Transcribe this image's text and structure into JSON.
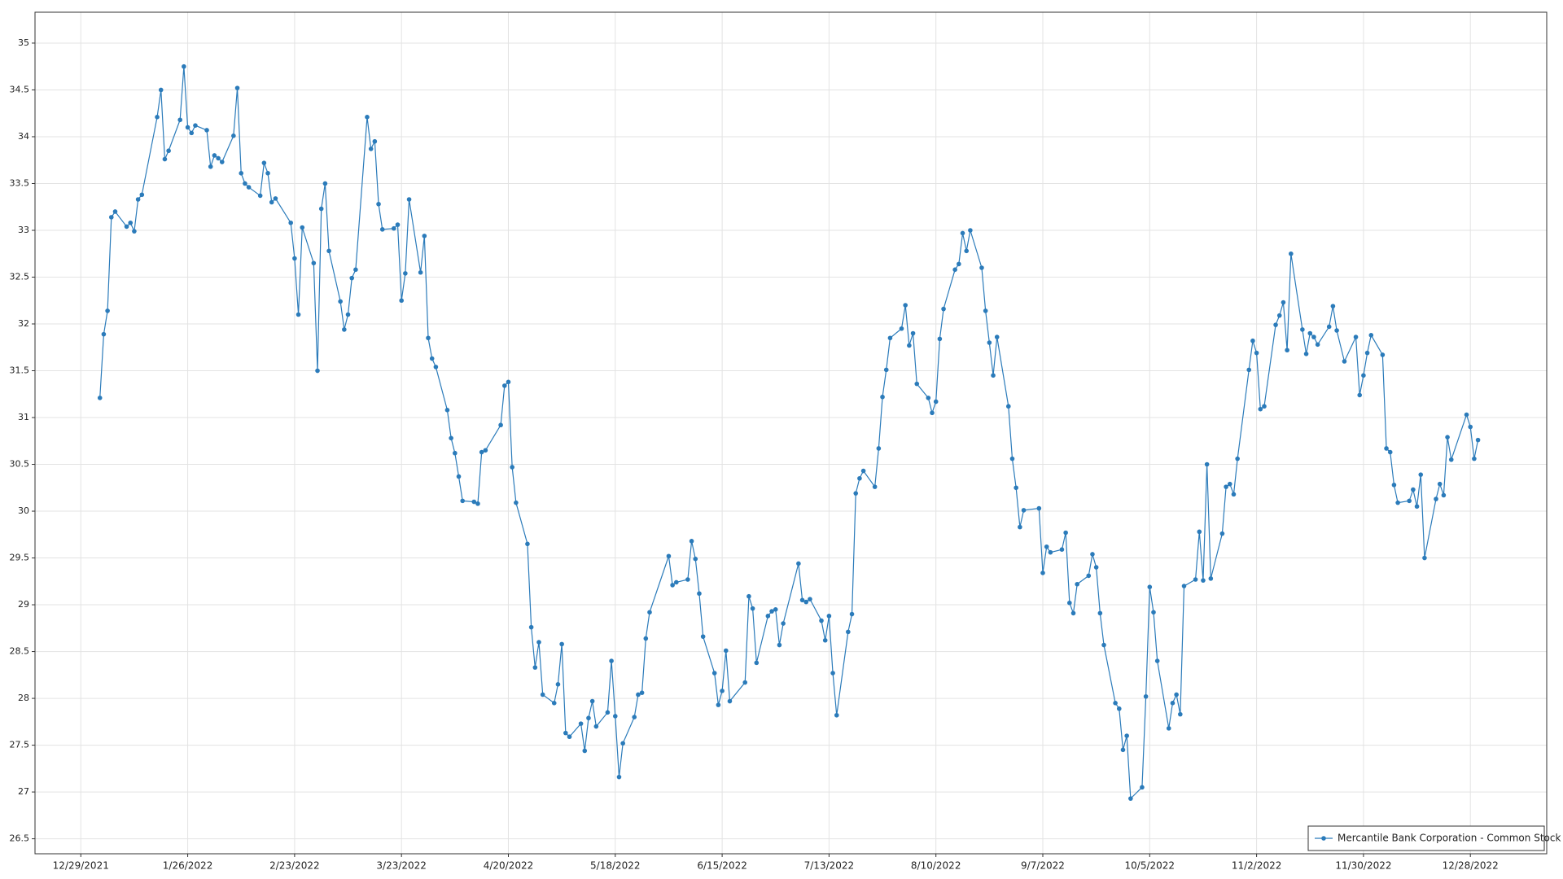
{
  "chart_data": {
    "type": "line",
    "x": [
      "1/3/2022",
      "1/4/2022",
      "1/5/2022",
      "1/6/2022",
      "1/7/2022",
      "1/10/2022",
      "1/11/2022",
      "1/12/2022",
      "1/13/2022",
      "1/14/2022",
      "1/18/2022",
      "1/19/2022",
      "1/20/2022",
      "1/21/2022",
      "1/24/2022",
      "1/25/2022",
      "1/26/2022",
      "1/27/2022",
      "1/28/2022",
      "1/31/2022",
      "2/1/2022",
      "2/2/2022",
      "2/3/2022",
      "2/4/2022",
      "2/7/2022",
      "2/8/2022",
      "2/9/2022",
      "2/10/2022",
      "2/11/2022",
      "2/14/2022",
      "2/15/2022",
      "2/16/2022",
      "2/17/2022",
      "2/18/2022",
      "2/22/2022",
      "2/23/2022",
      "2/24/2022",
      "2/25/2022",
      "2/28/2022",
      "3/1/2022",
      "3/2/2022",
      "3/3/2022",
      "3/4/2022",
      "3/7/2022",
      "3/8/2022",
      "3/9/2022",
      "3/10/2022",
      "3/11/2022",
      "3/14/2022",
      "3/15/2022",
      "3/16/2022",
      "3/17/2022",
      "3/18/2022",
      "3/21/2022",
      "3/22/2022",
      "3/23/2022",
      "3/24/2022",
      "3/25/2022",
      "3/28/2022",
      "3/29/2022",
      "3/30/2022",
      "3/31/2022",
      "4/1/2022",
      "4/4/2022",
      "4/5/2022",
      "4/6/2022",
      "4/7/2022",
      "4/8/2022",
      "4/11/2022",
      "4/12/2022",
      "4/13/2022",
      "4/14/2022",
      "4/18/2022",
      "4/19/2022",
      "4/20/2022",
      "4/21/2022",
      "4/22/2022",
      "4/25/2022",
      "4/26/2022",
      "4/27/2022",
      "4/28/2022",
      "4/29/2022",
      "5/2/2022",
      "5/3/2022",
      "5/4/2022",
      "5/5/2022",
      "5/6/2022",
      "5/9/2022",
      "5/10/2022",
      "5/11/2022",
      "5/12/2022",
      "5/13/2022",
      "5/16/2022",
      "5/17/2022",
      "5/18/2022",
      "5/19/2022",
      "5/20/2022",
      "5/23/2022",
      "5/24/2022",
      "5/25/2022",
      "5/26/2022",
      "5/27/2022",
      "6/1/2022",
      "6/2/2022",
      "6/3/2022",
      "6/6/2022",
      "6/7/2022",
      "6/8/2022",
      "6/9/2022",
      "6/10/2022",
      "6/13/2022",
      "6/14/2022",
      "6/15/2022",
      "6/16/2022",
      "6/17/2022",
      "6/21/2022",
      "6/22/2022",
      "6/23/2022",
      "6/24/2022",
      "6/27/2022",
      "6/28/2022",
      "6/29/2022",
      "6/30/2022",
      "7/1/2022",
      "7/5/2022",
      "7/6/2022",
      "7/7/2022",
      "7/8/2022",
      "7/11/2022",
      "7/12/2022",
      "7/13/2022",
      "7/14/2022",
      "7/15/2022",
      "7/18/2022",
      "7/19/2022",
      "7/20/2022",
      "7/21/2022",
      "7/22/2022",
      "7/25/2022",
      "7/26/2022",
      "7/27/2022",
      "7/28/2022",
      "7/29/2022",
      "8/1/2022",
      "8/2/2022",
      "8/3/2022",
      "8/4/2022",
      "8/5/2022",
      "8/8/2022",
      "8/9/2022",
      "8/10/2022",
      "8/11/2022",
      "8/12/2022",
      "8/15/2022",
      "8/16/2022",
      "8/17/2022",
      "8/18/2022",
      "8/19/2022",
      "8/22/2022",
      "8/23/2022",
      "8/24/2022",
      "8/25/2022",
      "8/26/2022",
      "8/29/2022",
      "8/30/2022",
      "8/31/2022",
      "9/1/2022",
      "9/2/2022",
      "9/6/2022",
      "9/7/2022",
      "9/8/2022",
      "9/9/2022",
      "9/12/2022",
      "9/13/2022",
      "9/14/2022",
      "9/15/2022",
      "9/16/2022",
      "9/19/2022",
      "9/20/2022",
      "9/21/2022",
      "9/22/2022",
      "9/23/2022",
      "9/26/2022",
      "9/27/2022",
      "9/28/2022",
      "9/29/2022",
      "9/30/2022",
      "10/3/2022",
      "10/4/2022",
      "10/5/2022",
      "10/6/2022",
      "10/7/2022",
      "10/10/2022",
      "10/11/2022",
      "10/12/2022",
      "10/13/2022",
      "10/14/2022",
      "10/17/2022",
      "10/18/2022",
      "10/19/2022",
      "10/20/2022",
      "10/21/2022",
      "10/24/2022",
      "10/25/2022",
      "10/26/2022",
      "10/27/2022",
      "10/28/2022",
      "10/31/2022",
      "11/1/2022",
      "11/2/2022",
      "11/3/2022",
      "11/4/2022",
      "11/7/2022",
      "11/8/2022",
      "11/9/2022",
      "11/10/2022",
      "11/11/2022",
      "11/14/2022",
      "11/15/2022",
      "11/16/2022",
      "11/17/2022",
      "11/18/2022",
      "11/21/2022",
      "11/22/2022",
      "11/23/2022",
      "11/25/2022",
      "11/28/2022",
      "11/29/2022",
      "11/30/2022",
      "12/1/2022",
      "12/2/2022",
      "12/5/2022",
      "12/6/2022",
      "12/7/2022",
      "12/8/2022",
      "12/9/2022",
      "12/12/2022",
      "12/13/2022",
      "12/14/2022",
      "12/15/2022",
      "12/16/2022",
      "12/19/2022",
      "12/20/2022",
      "12/21/2022",
      "12/22/2022",
      "12/23/2022",
      "12/27/2022",
      "12/28/2022",
      "12/29/2022",
      "12/30/2022"
    ],
    "series": [
      {
        "name": "Mercantile Bank Corporation - Common Stock",
        "color": "#2b7bba",
        "values": [
          31.21,
          31.89,
          32.14,
          33.14,
          33.2,
          33.04,
          33.08,
          32.99,
          33.33,
          33.38,
          34.21,
          34.5,
          33.76,
          33.85,
          34.18,
          34.75,
          34.1,
          34.04,
          34.12,
          34.07,
          33.68,
          33.8,
          33.77,
          33.73,
          34.01,
          34.52,
          33.61,
          33.5,
          33.46,
          33.37,
          33.72,
          33.61,
          33.3,
          33.34,
          33.08,
          32.7,
          32.1,
          33.03,
          32.65,
          31.5,
          33.23,
          33.5,
          32.78,
          32.24,
          31.94,
          32.1,
          32.49,
          32.58,
          34.21,
          33.87,
          33.95,
          33.28,
          33.01,
          33.02,
          33.06,
          32.25,
          32.54,
          33.33,
          32.55,
          32.94,
          31.85,
          31.63,
          31.54,
          31.08,
          30.78,
          30.62,
          30.37,
          30.11,
          30.1,
          30.08,
          30.63,
          30.65,
          30.92,
          31.34,
          31.38,
          30.47,
          30.09,
          29.65,
          28.76,
          28.33,
          28.6,
          28.04,
          27.95,
          28.15,
          28.58,
          27.63,
          27.59,
          27.73,
          27.44,
          27.79,
          27.97,
          27.7,
          27.85,
          28.4,
          27.81,
          27.16,
          27.52,
          27.8,
          28.04,
          28.06,
          28.64,
          28.92,
          29.52,
          29.21,
          29.24,
          29.27,
          29.68,
          29.49,
          29.12,
          28.66,
          28.27,
          27.93,
          28.08,
          28.51,
          27.97,
          28.17,
          29.09,
          28.96,
          28.38,
          28.88,
          28.93,
          28.95,
          28.57,
          28.8,
          29.44,
          29.05,
          29.03,
          29.06,
          28.83,
          28.62,
          28.88,
          28.27,
          27.82,
          28.71,
          28.9,
          30.19,
          30.35,
          30.43,
          30.26,
          30.67,
          31.22,
          31.51,
          31.85,
          31.95,
          32.2,
          31.77,
          31.9,
          31.36,
          31.21,
          31.05,
          31.17,
          31.84,
          32.16,
          32.58,
          32.64,
          32.97,
          32.78,
          33.0,
          32.6,
          32.14,
          31.8,
          31.45,
          31.86,
          31.12,
          30.56,
          30.25,
          29.83,
          30.01,
          30.03,
          29.34,
          29.62,
          29.56,
          29.59,
          29.77,
          29.02,
          28.91,
          29.22,
          29.31,
          29.54,
          29.4,
          28.91,
          28.57,
          27.95,
          27.89,
          27.45,
          27.6,
          26.93,
          27.05,
          28.02,
          29.19,
          28.92,
          28.4,
          27.68,
          27.95,
          28.04,
          27.83,
          29.2,
          29.27,
          29.78,
          29.26,
          30.5,
          29.28,
          29.76,
          30.26,
          30.29,
          30.18,
          30.56,
          31.51,
          31.82,
          31.69,
          31.09,
          31.12,
          31.99,
          32.09,
          32.23,
          31.72,
          32.75,
          31.94,
          31.68,
          31.9,
          31.86,
          31.78,
          31.97,
          32.19,
          31.93,
          31.6,
          31.86,
          31.24,
          31.45,
          31.69,
          31.88,
          31.67,
          30.67,
          30.63,
          30.28,
          30.09,
          30.11,
          30.23,
          30.05,
          30.39,
          29.5,
          30.13,
          30.29,
          30.17,
          30.79,
          30.55,
          31.03,
          30.9,
          30.56,
          30.76
        ]
      }
    ],
    "xlim": [
      "12/17/2021",
      "1/17/2023"
    ],
    "xticks": [
      "12/29/2021",
      "1/26/2022",
      "2/23/2022",
      "3/23/2022",
      "4/20/2022",
      "5/18/2022",
      "6/15/2022",
      "7/13/2022",
      "8/10/2022",
      "9/7/2022",
      "10/5/2022",
      "11/2/2022",
      "11/30/2022",
      "12/28/2022"
    ],
    "ylim": [
      26.34,
      35.33
    ],
    "yticks": [
      26.5,
      27,
      27.5,
      28,
      28.5,
      29,
      29.5,
      30,
      30.5,
      31,
      31.5,
      32,
      32.5,
      33,
      33.5,
      34,
      34.5,
      35
    ],
    "grid": true,
    "legend": "lower right"
  }
}
